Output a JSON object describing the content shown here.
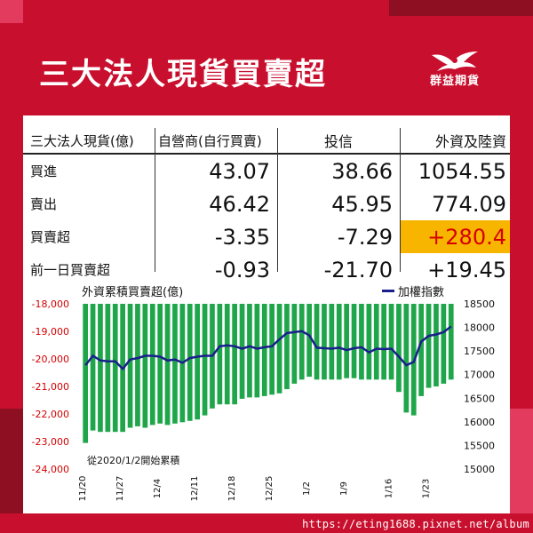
{
  "header": {
    "title": "三大法人現貨買賣超",
    "logo_text": "群益期貨"
  },
  "table": {
    "columns": [
      "三大法人現貨(億)",
      "自營商(自行買賣)",
      "投信",
      "外資及陸資"
    ],
    "rows": [
      {
        "label": "買進",
        "dealer": "43.07",
        "trust": "38.66",
        "foreign": "1054.55"
      },
      {
        "label": "賣出",
        "dealer": "46.42",
        "trust": "45.95",
        "foreign": "774.09"
      },
      {
        "label": "買賣超",
        "dealer": "-3.35",
        "trust": "-7.29",
        "foreign": "+280.4"
      },
      {
        "label": "前一日買賣超",
        "dealer": "-0.93",
        "trust": "-21.70",
        "foreign": "+19.45"
      }
    ]
  },
  "colors": {
    "background": "#c8102e",
    "bar": "#1fa64a",
    "line": "#1a1f8c",
    "left_axis": "#d50000",
    "highlight": "#f7b500"
  },
  "chart_data": {
    "type": "bar",
    "title": "外資累積買賣超(億)",
    "legend": "加權指數",
    "footnote": "從2020/1/2開始累積",
    "left_axis": {
      "ylim": [
        -24000,
        -18000
      ],
      "ticks": [
        "-18,000",
        "-19,000",
        "-20,000",
        "-21,000",
        "-22,000",
        "-23,000",
        "-24,000"
      ]
    },
    "right_axis": {
      "ylim": [
        15000,
        18500
      ],
      "ticks": [
        "18500",
        "18000",
        "17500",
        "17000",
        "16500",
        "16000",
        "15500",
        "15000"
      ]
    },
    "x_ticks": [
      "11/20",
      "11/27",
      "12/4",
      "12/11",
      "12/18",
      "12/25",
      "1/2",
      "1/9",
      "1/16",
      "1/23"
    ],
    "series": [
      {
        "type": "bar",
        "values": [
          -23050,
          -22600,
          -22650,
          -22650,
          -22650,
          -22650,
          -22500,
          -22450,
          -22500,
          -22400,
          -22350,
          -22400,
          -22350,
          -22300,
          -22250,
          -22200,
          -22050,
          -21800,
          -21650,
          -21650,
          -21650,
          -21450,
          -21400,
          -21400,
          -21350,
          -21300,
          -21250,
          -21100,
          -20900,
          -20750,
          -20650,
          -20750,
          -20750,
          -20750,
          -20750,
          -20700,
          -20700,
          -20750,
          -20750,
          -20750,
          -20750,
          -20750,
          -21200,
          -21950,
          -22050,
          -21350,
          -21050,
          -21000,
          -20900,
          -20750
        ]
      },
      {
        "name": "加權指數",
        "type": "line",
        "values": [
          17200,
          17400,
          17300,
          17280,
          17280,
          17120,
          17320,
          17350,
          17400,
          17400,
          17380,
          17300,
          17320,
          17250,
          17350,
          17380,
          17400,
          17400,
          17600,
          17620,
          17600,
          17550,
          17600,
          17550,
          17580,
          17600,
          17750,
          17880,
          17900,
          17920,
          17830,
          17570,
          17560,
          17550,
          17570,
          17520,
          17560,
          17580,
          17470,
          17550,
          17540,
          17550,
          17380,
          17200,
          17270,
          17700,
          17820,
          17850,
          17900,
          18020
        ]
      }
    ]
  },
  "footer": {
    "url": "https://eting1688.pixnet.net/album"
  }
}
